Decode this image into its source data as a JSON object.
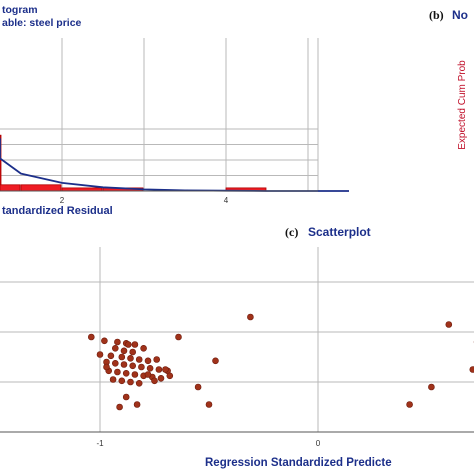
{
  "colors": {
    "title": "#1c2f8a",
    "axis_label": "#1c2f8a",
    "bar_fill": "#ee1c24",
    "bar_stroke": "#b00000",
    "curve": "#1c2f8a",
    "point": "#a0321a",
    "grid": "#b9b9b9",
    "ylabel_right": "#c0102a"
  },
  "panel_b": {
    "label": "(b)",
    "title_partial": "No",
    "ylabel": "Expected Cum Prob"
  },
  "chart_data": [
    {
      "type": "bar",
      "panel": "a",
      "title_lines": [
        "togram",
        "able: steel price"
      ],
      "xlabel": "tandardized Residual",
      "x_ticks": [
        "2",
        "4"
      ],
      "grid": true,
      "bars": [
        {
          "x0": -0.5,
          "x1": 0.0,
          "value": 18
        },
        {
          "x0": 0.0,
          "x1": 0.5,
          "value": 2
        },
        {
          "x0": 0.5,
          "x1": 1.0,
          "value": 2
        },
        {
          "x0": 1.0,
          "x1": 1.5,
          "value": 1
        },
        {
          "x0": 1.5,
          "x1": 2.0,
          "value": 1
        },
        {
          "x0": 3.0,
          "x1": 3.5,
          "value": 1
        }
      ],
      "normal_curve": {
        "x": [
          -0.5,
          0.0,
          0.5,
          1.0,
          1.5,
          2.0,
          2.5,
          3.0,
          3.5,
          4.5
        ],
        "y": [
          17.0,
          10.5,
          5.6,
          2.6,
          1.2,
          0.5,
          0.2,
          0.1,
          0.0,
          0.0
        ]
      }
    },
    {
      "type": "scatter",
      "panel": "c",
      "label": "(c)",
      "title": "Scatterplot",
      "xlabel": "Regression Standardized Predicte",
      "x_ticks": [
        "-1",
        "0"
      ],
      "grid": true,
      "points": [
        [
          -0.31,
          2.6
        ],
        [
          0.6,
          2.3
        ],
        [
          0.73,
          1.6
        ],
        [
          0.71,
          0.5
        ],
        [
          0.52,
          -0.2
        ],
        [
          0.42,
          -0.9
        ],
        [
          -1.04,
          1.8
        ],
        [
          -0.98,
          1.65
        ],
        [
          -0.92,
          1.6
        ],
        [
          -0.88,
          1.55
        ],
        [
          -0.84,
          1.5
        ],
        [
          -0.8,
          1.35
        ],
        [
          -0.93,
          1.35
        ],
        [
          -0.89,
          1.25
        ],
        [
          -0.85,
          1.2
        ],
        [
          -1.0,
          1.1
        ],
        [
          -0.95,
          1.05
        ],
        [
          -0.9,
          1.0
        ],
        [
          -0.86,
          0.95
        ],
        [
          -0.82,
          0.9
        ],
        [
          -0.78,
          0.85
        ],
        [
          -0.74,
          0.9
        ],
        [
          -0.97,
          0.8
        ],
        [
          -0.93,
          0.75
        ],
        [
          -0.89,
          0.7
        ],
        [
          -0.85,
          0.65
        ],
        [
          -0.81,
          0.6
        ],
        [
          -0.77,
          0.55
        ],
        [
          -0.73,
          0.5
        ],
        [
          -0.69,
          0.45
        ],
        [
          -0.96,
          0.45
        ],
        [
          -0.92,
          0.4
        ],
        [
          -0.88,
          0.35
        ],
        [
          -0.84,
          0.3
        ],
        [
          -0.8,
          0.25
        ],
        [
          -0.76,
          0.2
        ],
        [
          -0.72,
          0.15
        ],
        [
          -0.68,
          0.25
        ],
        [
          -0.94,
          0.1
        ],
        [
          -0.9,
          0.05
        ],
        [
          -0.86,
          0.0
        ],
        [
          -0.82,
          -0.05
        ],
        [
          -0.78,
          0.3
        ],
        [
          -0.75,
          0.05
        ],
        [
          -0.7,
          0.5
        ],
        [
          -0.88,
          -0.6
        ],
        [
          -0.83,
          -0.9
        ],
        [
          -0.64,
          1.8
        ],
        [
          -0.47,
          0.85
        ],
        [
          -0.55,
          -0.2
        ],
        [
          -0.5,
          -0.9
        ],
        [
          -0.91,
          -1.0
        ],
        [
          -0.87,
          1.5
        ],
        [
          -0.97,
          0.6
        ]
      ]
    }
  ]
}
